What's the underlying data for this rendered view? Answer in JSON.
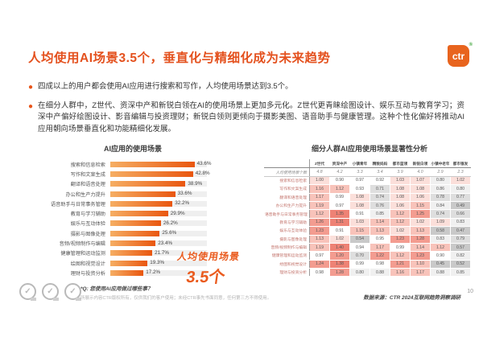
{
  "title": "人均使用AI场景3.5个，垂直化与精细化成为未来趋势",
  "logo": {
    "text": "ctr",
    "registered": "®"
  },
  "bullets": [
    "四成以上的用户都会使用AI应用进行搜索和写作，人均使用场景达到3.5个。",
    "在细分人群中，Z世代、资深中产和新锐白领在AI的使用场景上更加多元化。Z世代更青睐绘图设计、娱乐互动与教育学习；资深中产偏好绘图设计、影音编辑与投资理财；新锐白领则更倾向于摄影美图、语音助手与健康管理。这种个性化偏好将推动AI应用朝向场景垂直化和功能精细化发展。"
  ],
  "chart_data": [
    {
      "type": "bar",
      "title": "AI应用的使用场景",
      "orientation": "horizontal",
      "unit": "%",
      "xlim": [
        0,
        50
      ],
      "categories": [
        "搜索和信息检索",
        "写作和文案生成",
        "翻译和语音处理",
        "办公和生产力提升",
        "语音助手与日常事务管理",
        "教育与学习辅助",
        "娱乐与互动体验",
        "摄影与图像处理",
        "音频/视频制作与编辑",
        "健康管理和运动监测",
        "绘图和视觉设计",
        "理财与投资分析"
      ],
      "values": [
        43.6,
        42.8,
        38.9,
        33.6,
        32.2,
        29.9,
        26.2,
        25.6,
        23.4,
        21.7,
        19.3,
        17.2
      ],
      "annotation": {
        "line1": "人均使用场景",
        "line2": "3.5个"
      }
    },
    {
      "type": "heatmap",
      "title": "细分人群AI应用使用场景显著性分析",
      "columns": [
        "Z世代",
        "资深中产",
        "小镇青年",
        "精致妈妈",
        "都市蓝领",
        "新锐白领",
        "小镇中老年",
        "都市银发"
      ],
      "count_row": {
        "label": "人均使用场景个数",
        "values": [
          4.8,
          4.2,
          3.3,
          3.4,
          3.9,
          4.0,
          2.9,
          2.3
        ]
      },
      "rows": [
        {
          "label": "搜索和信息检索",
          "values": [
            1.0,
            0.9,
            0.97,
            0.92,
            1.03,
            1.07,
            0.8,
            1.02
          ]
        },
        {
          "label": "写作和文案生成",
          "values": [
            1.16,
            1.12,
            0.93,
            0.71,
            1.08,
            1.08,
            0.86,
            0.8
          ]
        },
        {
          "label": "翻译和语音处理",
          "values": [
            1.17,
            0.99,
            1.08,
            0.74,
            1.08,
            1.06,
            0.78,
            0.77
          ]
        },
        {
          "label": "办公和生产力提升",
          "values": [
            1.19,
            0.97,
            1.08,
            0.76,
            1.06,
            1.15,
            0.84,
            0.49
          ]
        },
        {
          "label": "语音助手与日常事务管理",
          "values": [
            1.12,
            1.35,
            0.91,
            0.85,
            1.12,
            1.25,
            0.74,
            0.66
          ]
        },
        {
          "label": "教育与学习辅助",
          "values": [
            1.26,
            1.31,
            1.03,
            1.14,
            1.12,
            1.02,
            1.09,
            0.83
          ]
        },
        {
          "label": "娱乐与互动体验",
          "values": [
            1.23,
            0.91,
            1.15,
            1.13,
            1.02,
            1.13,
            0.58,
            0.47
          ]
        },
        {
          "label": "摄影与图像处理",
          "values": [
            1.13,
            1.02,
            0.54,
            0.95,
            1.23,
            1.28,
            0.83,
            0.79
          ]
        },
        {
          "label": "音频/视频制作与编辑",
          "values": [
            1.19,
            1.4,
            0.94,
            1.17,
            0.99,
            1.14,
            1.12,
            0.57
          ]
        },
        {
          "label": "健康管理和运动监测",
          "values": [
            0.97,
            1.2,
            0.7,
            1.22,
            1.12,
            1.23,
            0.9,
            0.82
          ]
        },
        {
          "label": "绘图和视觉设计",
          "values": [
            1.24,
            1.38,
            0.99,
            0.98,
            1.21,
            1.1,
            0.45,
            0.52
          ]
        },
        {
          "label": "理财与投资分析",
          "values": [
            0.98,
            1.28,
            0.8,
            0.88,
            1.16,
            1.17,
            0.88,
            0.85
          ]
        }
      ]
    }
  ],
  "footer": {
    "q_note": "*Q: 您使用AI应用做过哪些事？",
    "disclaimer": "所展示内容CTR版权所有，仅供我们的客户使用；未经CTR事先书面同意，任何第三方不得使用。",
    "source": "数据来源：CTR 2024互联网趋势洞察调研",
    "page_number": "10"
  },
  "colors": {
    "accent_orange": "#E8551A",
    "bar_gradient_start": "#F6AE63",
    "bar_gradient_end": "#E9560F",
    "heat_red_max": "#EE8275",
    "heat_gray_low": "#C9C9C9"
  }
}
